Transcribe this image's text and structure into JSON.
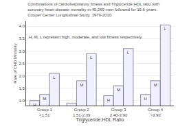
{
  "chart_data": {
    "type": "bar",
    "title": "Combinations of cardiorespiratory fitness and Triglyceride:HDL ratio with\ncoronary heart disease mortality in 40,269 men followed for 15.6 years.\nCooper Center Longitudinal Study, 1979-2010.",
    "annotations": [
      "H, M, L represent high, moderate, and low fitness respectively"
    ],
    "categories": [
      "Group 1\n<1.51",
      "Group 2\n1.51-2.39",
      "Group 3\n2.40-3.90",
      "Group 4\n>3.90"
    ],
    "series": [
      {
        "name": "H",
        "values": [
          1.0,
          0.9,
          1.2,
          1.25
        ]
      },
      {
        "name": "M",
        "values": [
          1.25,
          1.8,
          1.6,
          1.8
        ]
      },
      {
        "name": "L",
        "values": [
          2.1,
          2.9,
          3.1,
          4.05
        ]
      }
    ],
    "color": "#f0f0ff",
    "xlabel": "Triglyceride:HDL Ratio",
    "ylabel": "Rate of CHD Mortality",
    "ylim": [
      0.8,
      4.2
    ],
    "yticks": [
      {
        "value": 1.0,
        "label": "1.0"
      },
      1.5,
      {
        "value": 2.0,
        "label": "2.0"
      },
      2.5,
      {
        "value": 3.0,
        "label": "3.0"
      },
      3.5,
      {
        "value": 4.0,
        "label": "4.0"
      }
    ],
    "grid": true
  }
}
